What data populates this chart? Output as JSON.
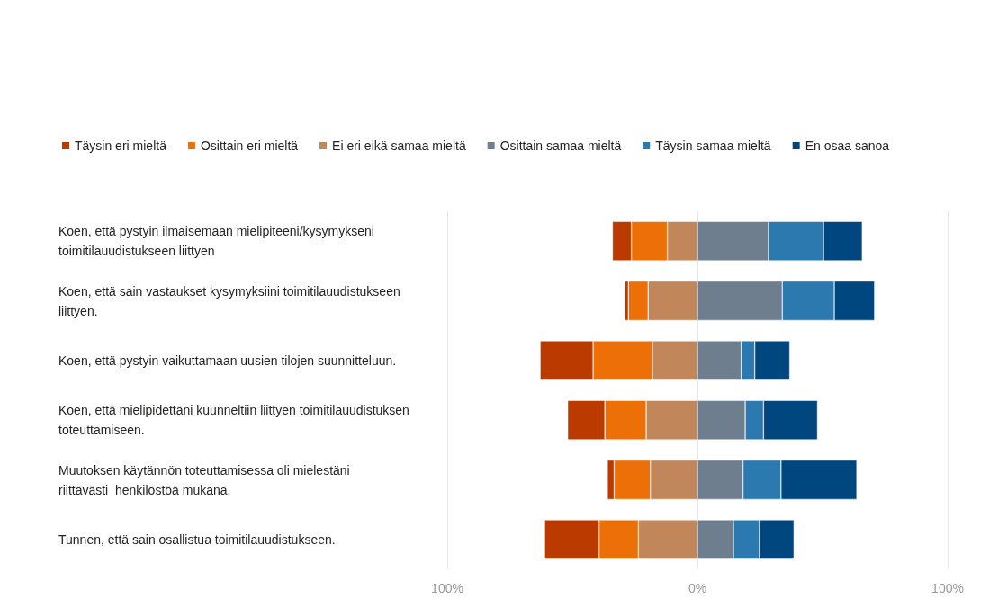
{
  "chart_data": {
    "type": "bar",
    "orientation": "horizontal",
    "stacked": true,
    "categories": [
      "Koen, että pystyin ilmaisemaan mielipiteeni/kysymykseni toimitilauudistukseen liittyen",
      "Koen, että sain vastaukset kysymyksiini toimitilauudistukseen liittyen.",
      "Koen, että pystyin vaikuttamaan uusien tilojen suunnitteluun.",
      "Koen, että mielipidettäni kuunneltiin liittyen toimitilauudistuksen toteuttamiseen.",
      "Muutoksen käytännön toteuttamisessa oli mielestäni riittävästi  henkilöstöä mukana.",
      "Tunnen, että sain osallistua toimitilauudistukseen."
    ],
    "series": [
      {
        "name": "Täysin eri mieltä",
        "color": "#bb3a00",
        "values": [
          -7.6,
          -1.5,
          -21.2,
          -14.9,
          -2.7,
          -21.8
        ]
      },
      {
        "name": "Osittain eri mieltä",
        "color": "#ec7007",
        "values": [
          -14.4,
          -7.9,
          -23.7,
          -16.5,
          -14.5,
          -15.7
        ]
      },
      {
        "name": "Ei eri eikä samaa mieltä",
        "color": "#c1865a",
        "values": [
          -12,
          -19.7,
          -18,
          -20.5,
          -18.8,
          -23.6
        ]
      },
      {
        "name": "Osittain samaa mieltä",
        "color": "#6f7e8e",
        "values": [
          28.4,
          33.9,
          17.5,
          19.1,
          18.2,
          14.4
        ]
      },
      {
        "name": "Täysin samaa mieltä",
        "color": "#2c79b0",
        "values": [
          22,
          20.8,
          5.4,
          7.3,
          15.2,
          10.4
        ]
      },
      {
        "name": "En osaa sanoa",
        "color": "#00467f",
        "values": [
          15.5,
          16.1,
          14,
          21.6,
          30.3,
          13.8
        ]
      }
    ],
    "xlim": [
      -100,
      100
    ],
    "xticks": [
      {
        "value": -100,
        "label": "100%"
      },
      {
        "value": 0,
        "label": "0%"
      },
      {
        "value": 100,
        "label": "100%"
      }
    ],
    "grid": "x",
    "legend": "top left"
  }
}
